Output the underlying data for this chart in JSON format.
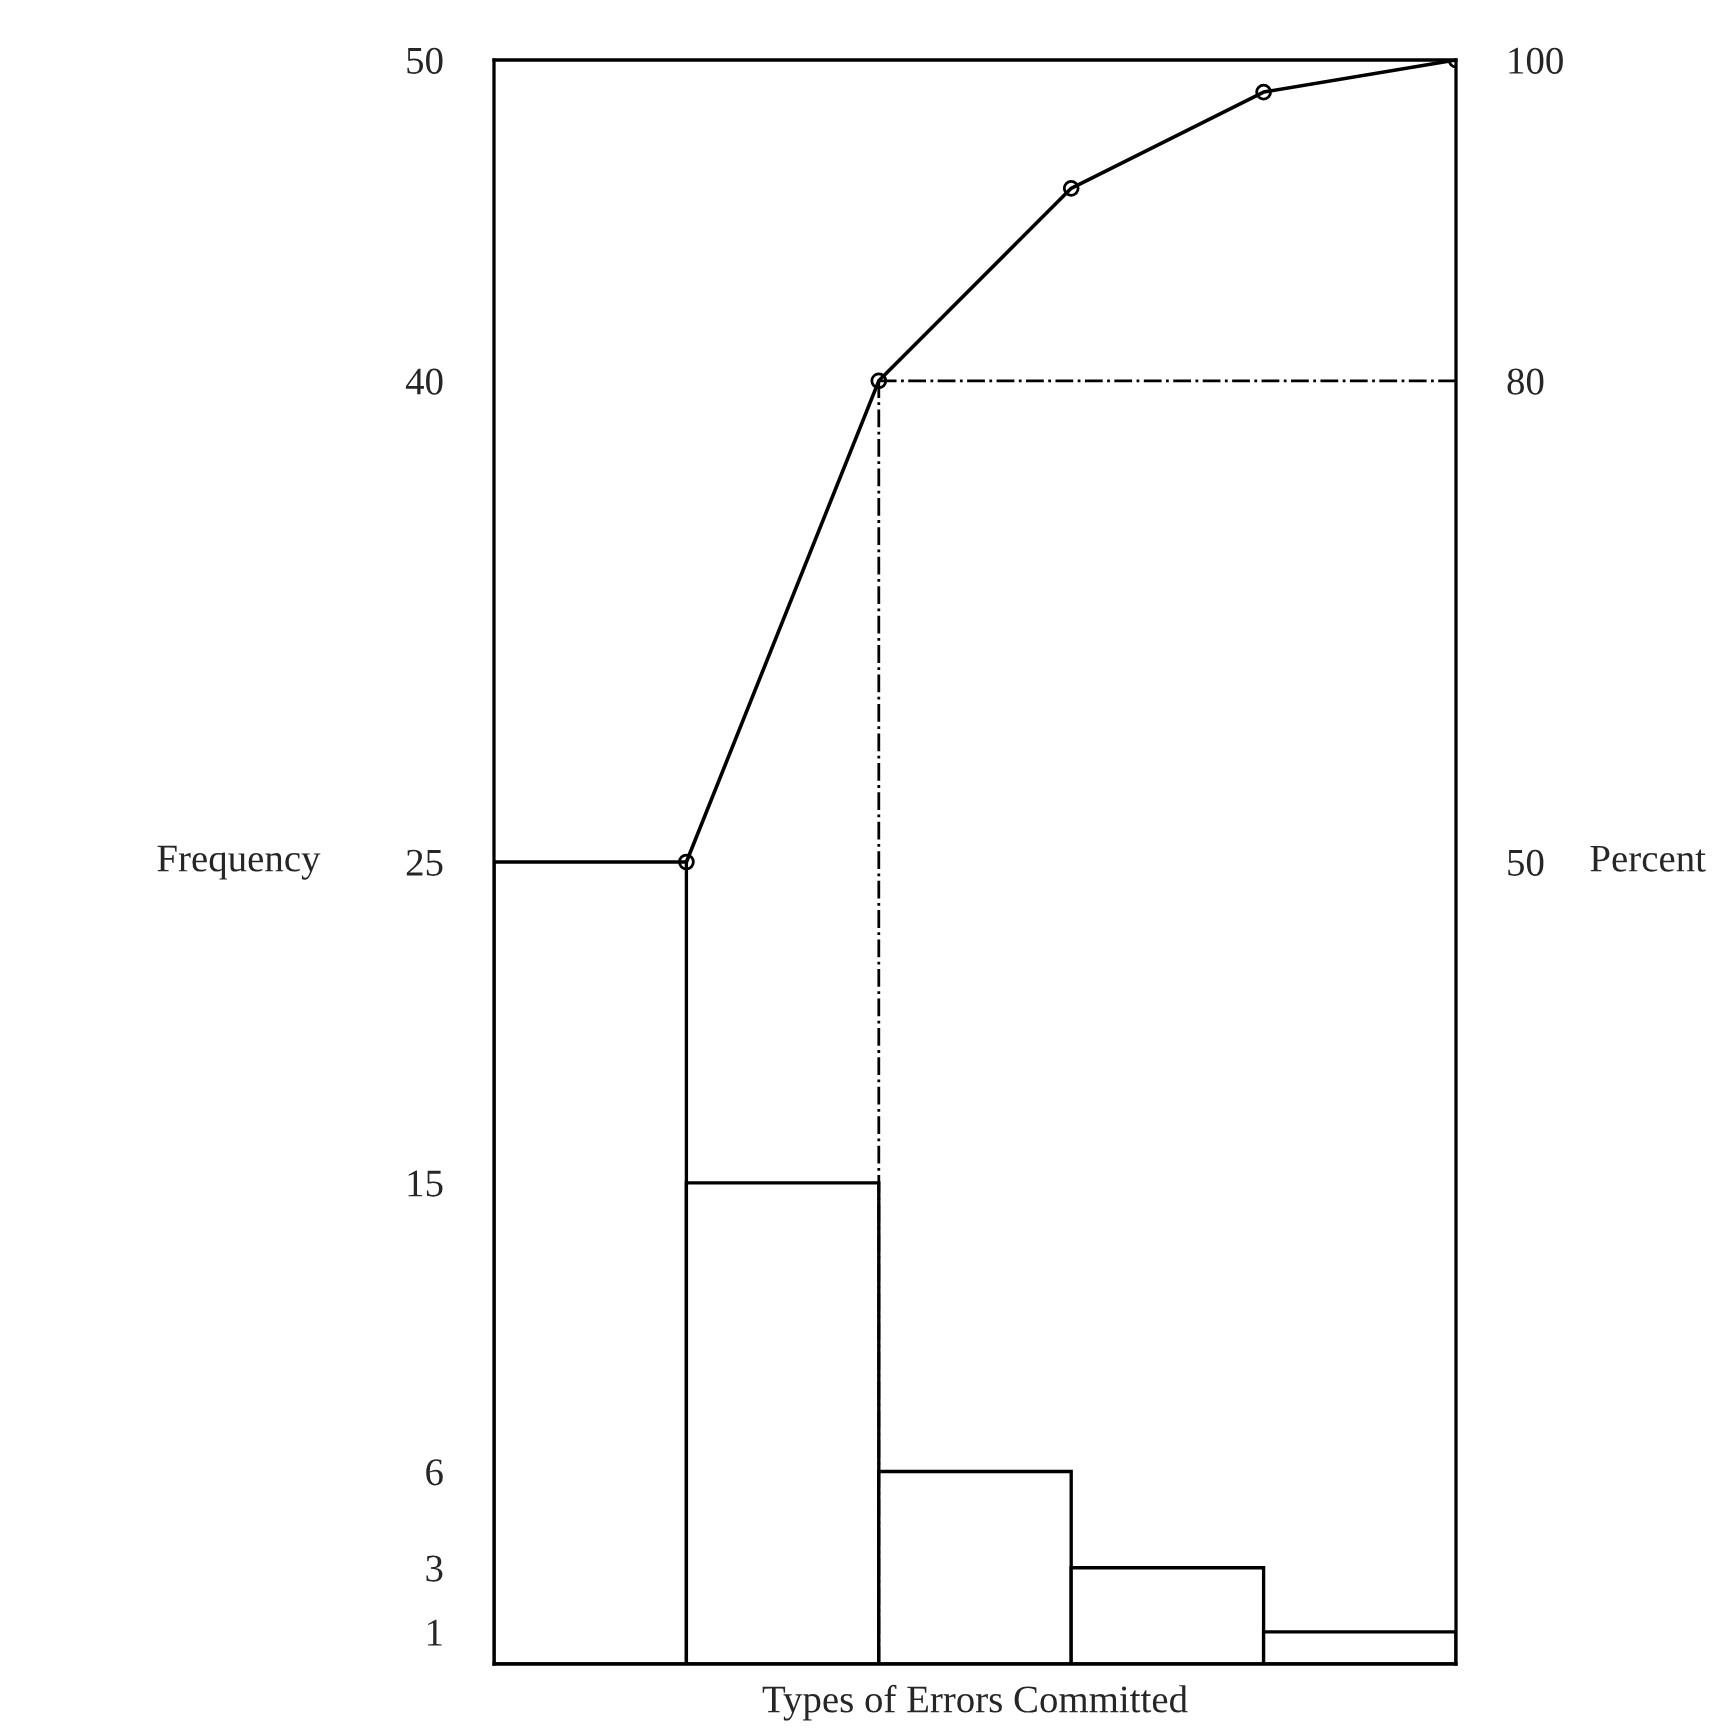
{
  "chart_data": {
    "type": "bar",
    "xlabel": "Types of Errors Committed",
    "ylabel": "Frequency",
    "y2label": "Percent",
    "categories": [
      null,
      null,
      null,
      null,
      null
    ],
    "series": [
      {
        "color": "#ffffff",
        "values": [
          25,
          15,
          6,
          3,
          1
        ]
      },
      {
        "type": "line",
        "axis": "y2",
        "color": "#000000",
        "values": [
          50,
          80,
          92,
          98,
          100
        ],
        "marker": "circle"
      }
    ],
    "ylim": [
      0,
      50
    ],
    "yticks": [
      1,
      3,
      6,
      15,
      25,
      40,
      50
    ],
    "y2lim": [
      0,
      100
    ],
    "y2ticks": [
      50,
      80,
      100
    ],
    "ref_lines": [
      {
        "axis": "y2",
        "value": 80,
        "line_style": "dashdot",
        "color": "#000000"
      }
    ],
    "grid": false,
    "legend": false
  }
}
